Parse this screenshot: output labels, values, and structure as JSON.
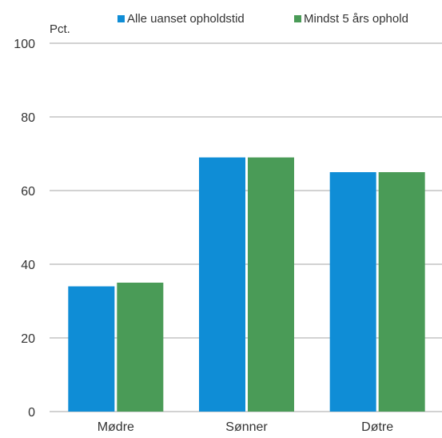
{
  "chart_data": {
    "type": "bar",
    "ylabel": "Pct.",
    "ylim": [
      0,
      100
    ],
    "yticks": [
      "0",
      "20",
      "40",
      "60",
      "80",
      "100"
    ],
    "categories": [
      "Mødre",
      "Sønner",
      "Døtre"
    ],
    "series": [
      {
        "name": "Alle uanset opholdstid",
        "values": [
          34,
          69,
          65
        ],
        "color": "#0f8dd6"
      },
      {
        "name": "Mindst 5 års ophold",
        "values": [
          35,
          69,
          65
        ],
        "color": "#4a9b57"
      }
    ],
    "grid": true,
    "legend_position": "top"
  }
}
